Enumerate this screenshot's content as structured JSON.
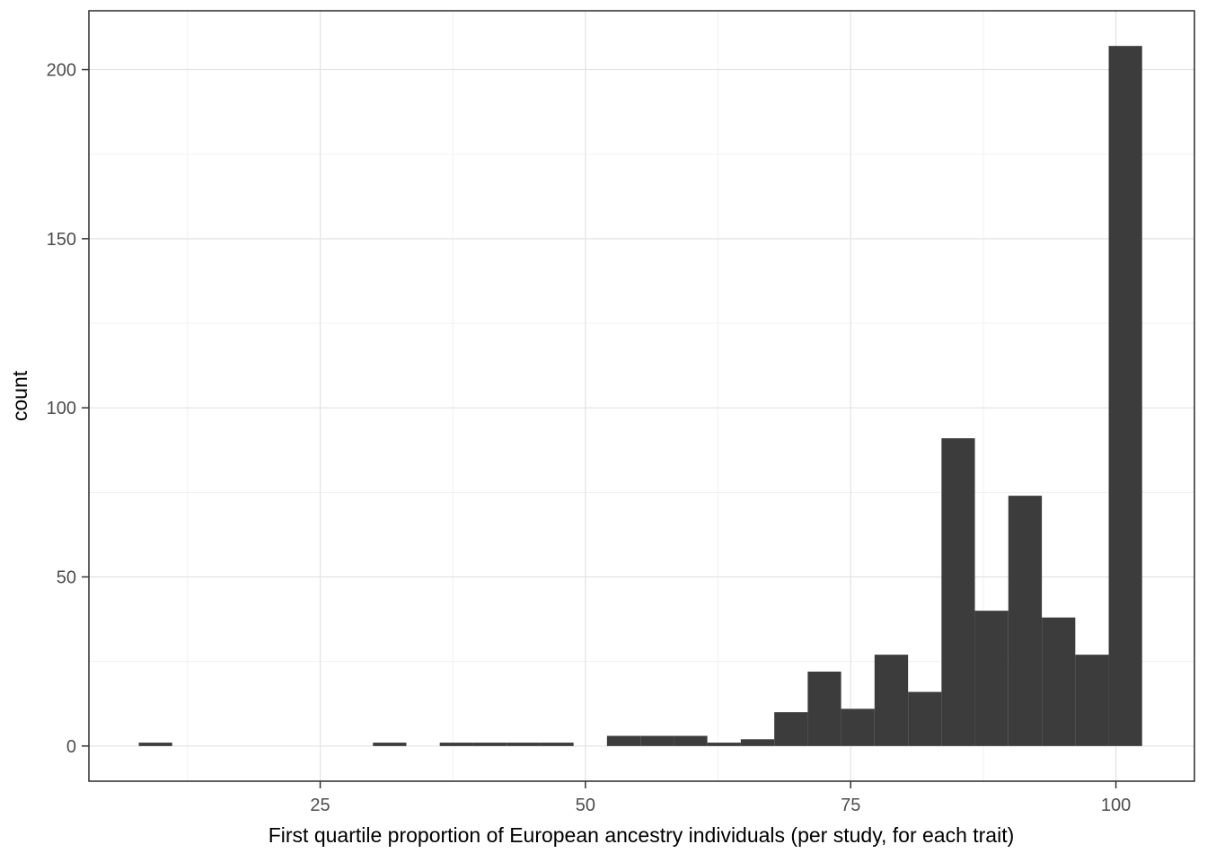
{
  "page": {
    "background": "#ffffff"
  },
  "chart_data": {
    "type": "histogram",
    "title": "",
    "xlabel": "First quartile proportion of European ancestry individuals (per study, for each trait)",
    "ylabel": "count",
    "x_ticks": [
      25,
      50,
      75,
      100
    ],
    "x_minor_ticks": [
      12.5,
      37.5,
      62.5,
      87.5
    ],
    "y_ticks": [
      0,
      50,
      100,
      150,
      200
    ],
    "y_minor_ticks": [
      25,
      75,
      125,
      175
    ],
    "x_domain": [
      3.2,
      107.4
    ],
    "y_domain": [
      -10.4,
      217.4
    ],
    "bin_width": 3.15,
    "legend": "none",
    "grid": "on",
    "style": {
      "bar_color": "#3C3C3C",
      "panel_bg": "#ffffff",
      "grid_major_color": "#e3e3e3",
      "grid_minor_color": "#f1f1f1",
      "panel_border_color": "#2b2b2b",
      "tick_color": "#333333",
      "tick_label_color": "#4d4d4d",
      "axis_title_color": "#000000"
    },
    "bins": [
      {
        "x0": 7.9,
        "x1": 11.05,
        "count": 1
      },
      {
        "x0": 29.97,
        "x1": 33.12,
        "count": 1
      },
      {
        "x0": 36.27,
        "x1": 39.42,
        "count": 1
      },
      {
        "x0": 39.42,
        "x1": 42.58,
        "count": 1
      },
      {
        "x0": 42.58,
        "x1": 45.73,
        "count": 1
      },
      {
        "x0": 45.73,
        "x1": 48.88,
        "count": 1
      },
      {
        "x0": 52.03,
        "x1": 55.19,
        "count": 3
      },
      {
        "x0": 55.19,
        "x1": 58.34,
        "count": 3
      },
      {
        "x0": 58.34,
        "x1": 61.49,
        "count": 3
      },
      {
        "x0": 61.49,
        "x1": 64.64,
        "count": 1
      },
      {
        "x0": 64.64,
        "x1": 67.8,
        "count": 2
      },
      {
        "x0": 67.8,
        "x1": 70.95,
        "count": 10
      },
      {
        "x0": 70.95,
        "x1": 74.1,
        "count": 22
      },
      {
        "x0": 74.1,
        "x1": 77.25,
        "count": 11
      },
      {
        "x0": 77.25,
        "x1": 80.41,
        "count": 27
      },
      {
        "x0": 80.41,
        "x1": 83.56,
        "count": 16
      },
      {
        "x0": 83.56,
        "x1": 86.71,
        "count": 91
      },
      {
        "x0": 86.71,
        "x1": 89.86,
        "count": 40
      },
      {
        "x0": 89.86,
        "x1": 93.02,
        "count": 74
      },
      {
        "x0": 93.02,
        "x1": 96.17,
        "count": 38
      },
      {
        "x0": 96.17,
        "x1": 99.32,
        "count": 27
      },
      {
        "x0": 99.32,
        "x1": 102.47,
        "count": 207
      }
    ]
  }
}
